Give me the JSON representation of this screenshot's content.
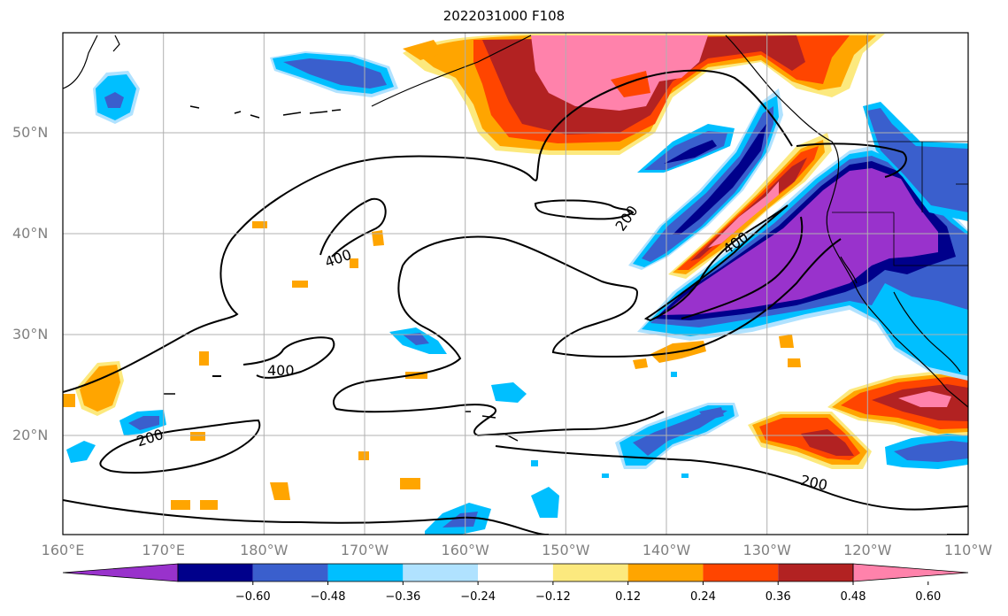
{
  "title": "2022031000 F108",
  "map": {
    "region": "North Pacific",
    "lon_range": [
      "160°E",
      "110°W"
    ],
    "lat_range": [
      "10°N",
      "60°N"
    ],
    "gridlines": true,
    "lat_labels": [
      "50°N",
      "40°N",
      "30°N",
      "20°N"
    ],
    "lon_labels": [
      "160°E",
      "170°E",
      "180°W",
      "170°W",
      "160°W",
      "150°W",
      "140°W",
      "130°W",
      "120°W",
      "110°W"
    ],
    "contour_labels": [
      "200",
      "400",
      "400",
      "400",
      "200",
      "200"
    ],
    "contour_color": "#000000"
  },
  "colorbar": {
    "orientation": "horizontal",
    "extend": "both",
    "colors": [
      "#9932cc",
      "#00008b",
      "#3a5fcd",
      "#00bfff",
      "#b0e2ff",
      "#ffffff",
      "#fce97e",
      "#ffa500",
      "#ff4500",
      "#b22222",
      "#ff82ab"
    ],
    "tick_labels": [
      "−0.60",
      "−0.48",
      "−0.36",
      "−0.24",
      "−0.12",
      "0.12",
      "0.24",
      "0.36",
      "0.48",
      "0.60"
    ]
  }
}
